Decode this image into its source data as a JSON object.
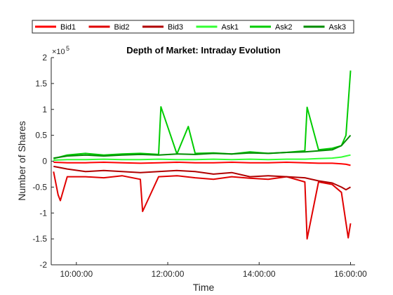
{
  "chart_data": {
    "type": "line",
    "title": "Depth of Market: Intraday Evolution",
    "xlabel": "Time",
    "ylabel": "Number of Shares",
    "y_exponent_label": "×10",
    "y_exponent_power": "5",
    "x_range_hours": [
      9.45,
      16.1
    ],
    "ylim": [
      -2,
      2
    ],
    "y_scale_note": "values in units of 10^5 shares",
    "x_ticks": [
      {
        "hour": 10,
        "label": "10:00:00"
      },
      {
        "hour": 12,
        "label": "12:00:00"
      },
      {
        "hour": 14,
        "label": "14:00:00"
      },
      {
        "hour": 16,
        "label": "16:00:00"
      }
    ],
    "y_ticks": [
      {
        "value": -2,
        "label": "-2"
      },
      {
        "value": -1.5,
        "label": "-1.5"
      },
      {
        "value": -1,
        "label": "-1"
      },
      {
        "value": -0.5,
        "label": "-0.5"
      },
      {
        "value": 0,
        "label": "0"
      },
      {
        "value": 0.5,
        "label": "0.5"
      },
      {
        "value": 1,
        "label": "1"
      },
      {
        "value": 1.5,
        "label": "1.5"
      },
      {
        "value": 2,
        "label": "2"
      }
    ],
    "legend_position": "top, outside",
    "grid": false,
    "series": [
      {
        "name": "Bid1",
        "color": "#ff0000",
        "x": [
          9.5,
          9.8,
          10.2,
          10.6,
          11.0,
          11.4,
          11.8,
          12.2,
          12.6,
          13.0,
          13.4,
          13.8,
          14.2,
          14.6,
          15.0,
          15.3,
          15.6,
          15.8,
          15.9,
          16.0
        ],
        "values": [
          -0.02,
          -0.03,
          -0.03,
          -0.02,
          -0.03,
          -0.04,
          -0.03,
          -0.02,
          -0.03,
          -0.03,
          -0.02,
          -0.03,
          -0.03,
          -0.02,
          -0.03,
          -0.04,
          -0.04,
          -0.05,
          -0.06,
          -0.08
        ]
      },
      {
        "name": "Bid2",
        "color": "#e00000",
        "x": [
          9.5,
          9.6,
          9.65,
          9.8,
          10.2,
          10.6,
          11.0,
          11.4,
          11.45,
          11.8,
          12.2,
          12.6,
          13.0,
          13.4,
          13.8,
          14.2,
          14.6,
          15.0,
          15.05,
          15.3,
          15.6,
          15.8,
          15.95,
          16.0
        ],
        "values": [
          -0.2,
          -0.65,
          -0.76,
          -0.3,
          -0.3,
          -0.32,
          -0.28,
          -0.35,
          -0.97,
          -0.3,
          -0.28,
          -0.32,
          -0.35,
          -0.3,
          -0.33,
          -0.35,
          -0.3,
          -0.4,
          -1.5,
          -0.4,
          -0.45,
          -0.6,
          -1.48,
          -1.2
        ]
      },
      {
        "name": "Bid3",
        "color": "#b00000",
        "x": [
          9.5,
          9.8,
          10.2,
          10.6,
          11.0,
          11.4,
          11.8,
          12.2,
          12.6,
          13.0,
          13.4,
          13.8,
          14.2,
          14.6,
          15.0,
          15.3,
          15.6,
          15.8,
          15.9,
          16.0
        ],
        "values": [
          -0.1,
          -0.15,
          -0.2,
          -0.18,
          -0.2,
          -0.22,
          -0.2,
          -0.18,
          -0.2,
          -0.25,
          -0.22,
          -0.3,
          -0.28,
          -0.3,
          -0.32,
          -0.38,
          -0.42,
          -0.5,
          -0.55,
          -0.5
        ]
      },
      {
        "name": "Ask1",
        "color": "#33ff33",
        "x": [
          9.5,
          9.8,
          10.2,
          10.6,
          11.0,
          11.4,
          11.8,
          12.2,
          12.6,
          13.0,
          13.4,
          13.8,
          14.2,
          14.6,
          15.0,
          15.3,
          15.6,
          15.8,
          15.9,
          16.0
        ],
        "values": [
          0.02,
          0.03,
          0.03,
          0.04,
          0.03,
          0.03,
          0.04,
          0.03,
          0.03,
          0.04,
          0.03,
          0.04,
          0.03,
          0.04,
          0.04,
          0.05,
          0.06,
          0.08,
          0.1,
          0.12
        ]
      },
      {
        "name": "Ask2",
        "color": "#00cc00",
        "x": [
          9.5,
          9.8,
          10.2,
          10.6,
          11.0,
          11.4,
          11.8,
          11.85,
          12.2,
          12.45,
          12.6,
          13.0,
          13.4,
          13.8,
          14.2,
          14.6,
          15.0,
          15.05,
          15.3,
          15.6,
          15.8,
          15.9,
          16.0
        ],
        "values": [
          0.05,
          0.12,
          0.15,
          0.12,
          0.14,
          0.15,
          0.13,
          1.05,
          0.14,
          0.67,
          0.15,
          0.16,
          0.14,
          0.18,
          0.15,
          0.17,
          0.2,
          1.04,
          0.22,
          0.25,
          0.3,
          0.5,
          1.75
        ]
      },
      {
        "name": "Ask3",
        "color": "#008c00",
        "x": [
          9.5,
          9.8,
          10.2,
          10.6,
          11.0,
          11.4,
          11.8,
          12.2,
          12.6,
          13.0,
          13.4,
          13.8,
          14.2,
          14.6,
          15.0,
          15.3,
          15.6,
          15.8,
          15.9,
          16.0
        ],
        "values": [
          0.06,
          0.1,
          0.12,
          0.1,
          0.12,
          0.13,
          0.12,
          0.14,
          0.13,
          0.15,
          0.14,
          0.16,
          0.15,
          0.17,
          0.18,
          0.2,
          0.22,
          0.3,
          0.4,
          0.5
        ]
      }
    ]
  }
}
